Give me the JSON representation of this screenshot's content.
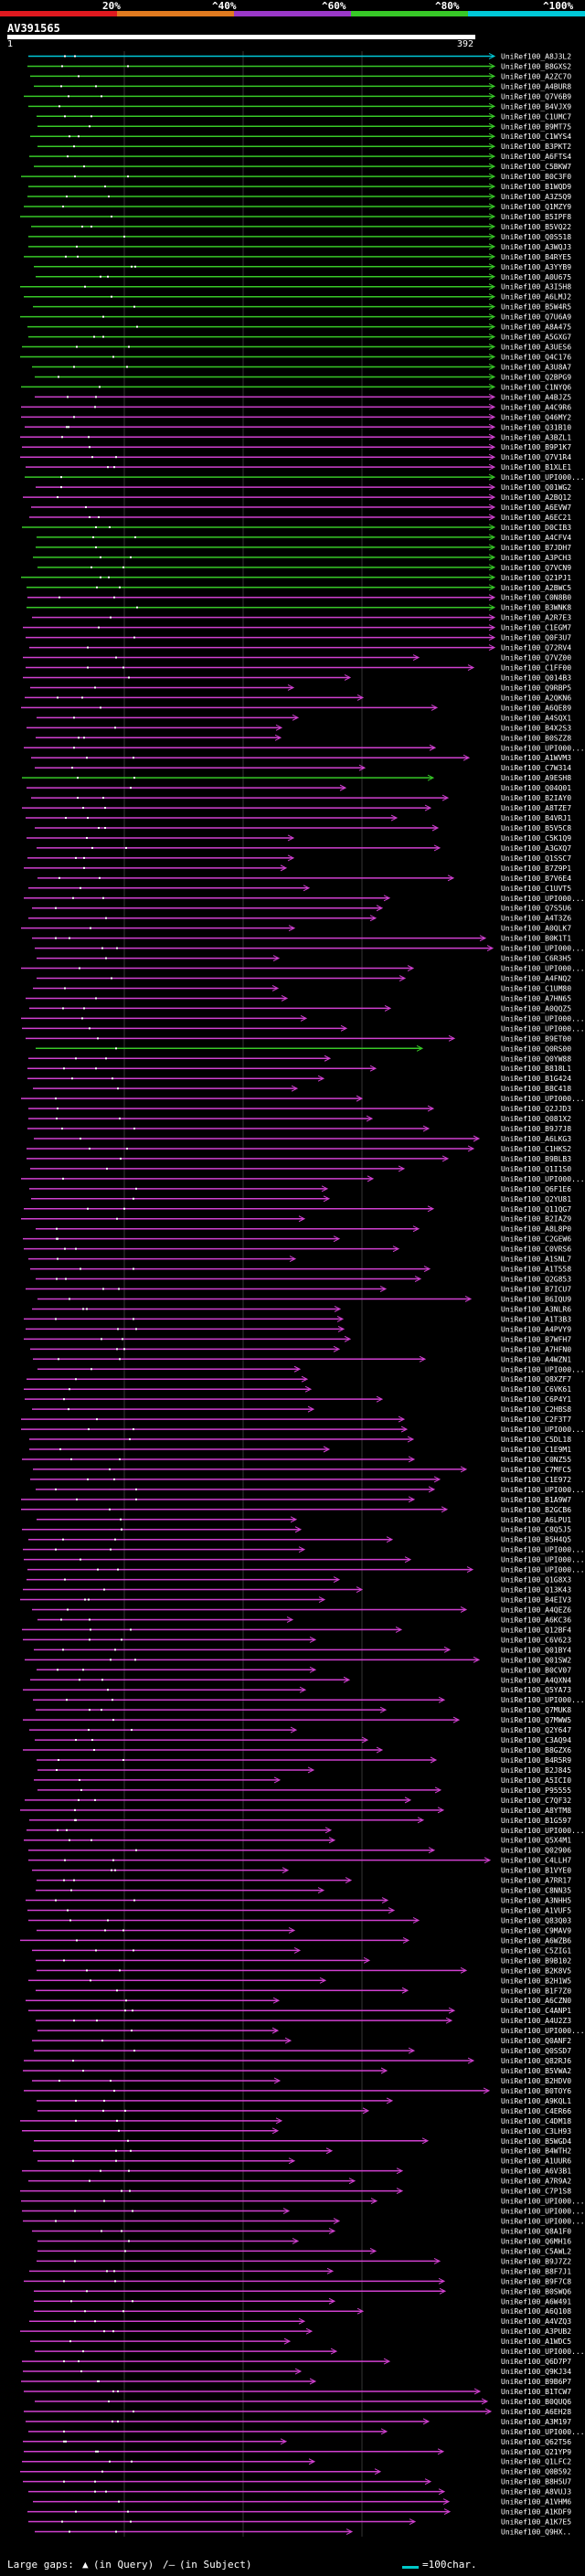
{
  "scale": {
    "labels": [
      "20%",
      "^40%",
      "^60%",
      "^80%",
      "^100%"
    ],
    "colors": [
      "#e0191f",
      "#e07a1f",
      "#9a38c8",
      "#37c827",
      "#00c8d8"
    ]
  },
  "query": {
    "title": "AV391565",
    "start": "1",
    "end": "392"
  },
  "footer": {
    "large_gaps_label": "Large gaps:",
    "in_query": "(in Query)",
    "in_subject": "(in Subject)",
    "legend_text": "=100char."
  },
  "hits": [
    {
      "id": "UniRef100_A8J3L2",
      "color": "cyan"
    },
    {
      "id": "UniRef100_B8GXS2",
      "color": "green"
    },
    {
      "id": "UniRef100_A2ZC7O",
      "color": "green"
    },
    {
      "id": "UniRef100_A4BUR8",
      "color": "green"
    },
    {
      "id": "UniRef100_Q7V6B9",
      "color": "green"
    },
    {
      "id": "UniRef100_B4VJX9",
      "color": "green"
    },
    {
      "id": "UniRef100_C1UMC7",
      "color": "green"
    },
    {
      "id": "UniRef100_B9MT75",
      "color": "green"
    },
    {
      "id": "UniRef100_C1WYS4",
      "color": "green"
    },
    {
      "id": "UniRef100_B3PKT2",
      "color": "green"
    },
    {
      "id": "UniRef100_A6FTS4",
      "color": "green"
    },
    {
      "id": "UniRef100_C5BKW7",
      "color": "green"
    },
    {
      "id": "UniRef100_B0C3F0",
      "color": "green"
    },
    {
      "id": "UniRef100_B1WQD9",
      "color": "green"
    },
    {
      "id": "UniRef100_A3Z5Q9",
      "color": "green"
    },
    {
      "id": "UniRef100_Q1MZY9",
      "color": "green"
    },
    {
      "id": "UniRef100_B5IPF8",
      "color": "green"
    },
    {
      "id": "UniRef100_B5VQ22",
      "color": "green"
    },
    {
      "id": "UniRef100_Q0S518",
      "color": "green"
    },
    {
      "id": "UniRef100_A3WQJ3",
      "color": "green"
    },
    {
      "id": "UniRef100_B4RYE5",
      "color": "green"
    },
    {
      "id": "UniRef100_A3YYB9",
      "color": "green"
    },
    {
      "id": "UniRef100_A0U675",
      "color": "green"
    },
    {
      "id": "UniRef100_A3I5H8",
      "color": "green"
    },
    {
      "id": "UniRef100_A6LMJ2",
      "color": "green"
    },
    {
      "id": "UniRef100_B5W4R5",
      "color": "green"
    },
    {
      "id": "UniRef100_Q7U6A9",
      "color": "green"
    },
    {
      "id": "UniRef100_A8A475",
      "color": "green"
    },
    {
      "id": "UniRef100_A5GXG7",
      "color": "green"
    },
    {
      "id": "UniRef100_A3UES6",
      "color": "green"
    },
    {
      "id": "UniRef100_Q4C176",
      "color": "green"
    },
    {
      "id": "UniRef100_A3U8A7",
      "color": "green"
    },
    {
      "id": "UniRef100_Q2BPG9",
      "color": "green"
    },
    {
      "id": "UniRef100_C1NYQ6",
      "color": "green"
    },
    {
      "id": "UniRef100_A4BJZ5",
      "color": "magenta"
    },
    {
      "id": "UniRef100_A4C9R6",
      "color": "magenta"
    },
    {
      "id": "UniRef100_Q46MY2",
      "color": "magenta"
    },
    {
      "id": "UniRef100_Q31B10",
      "color": "magenta"
    },
    {
      "id": "UniRef100_A3BZL1",
      "color": "magenta"
    },
    {
      "id": "UniRef100_B9P1K7",
      "color": "magenta"
    },
    {
      "id": "UniRef100_Q7V1R4",
      "color": "magenta"
    },
    {
      "id": "UniRef100_B1XLE1",
      "color": "magenta"
    },
    {
      "id": "UniRef100_UPI000...",
      "color": "green"
    },
    {
      "id": "UniRef100_Q01WG2",
      "color": "magenta"
    },
    {
      "id": "UniRef100_A2BQ12",
      "color": "magenta"
    },
    {
      "id": "UniRef100_A6EVW7",
      "color": "magenta"
    },
    {
      "id": "UniRef100_A6EC21",
      "color": "magenta"
    },
    {
      "id": "UniRef100_D0CIB3",
      "color": "green"
    },
    {
      "id": "UniRef100_A4CFV4",
      "color": "green"
    },
    {
      "id": "UniRef100_B7JDH7",
      "color": "green"
    },
    {
      "id": "UniRef100_A3PCH3",
      "color": "green"
    },
    {
      "id": "UniRef100_Q7VCN9",
      "color": "green"
    },
    {
      "id": "UniRef100_Q21PJ1",
      "color": "green"
    },
    {
      "id": "UniRef100_A2BWC5",
      "color": "green"
    },
    {
      "id": "UniRef100_C0N8B0",
      "color": "magenta"
    },
    {
      "id": "UniRef100_B3WNK8",
      "color": "green"
    },
    {
      "id": "UniRef100_A2R7E3",
      "color": "magenta"
    },
    {
      "id": "UniRef100_C1EGM7",
      "color": "magenta"
    },
    {
      "id": "UniRef100_Q0F3U7",
      "color": "magenta"
    },
    {
      "id": "UniRef100_Q72RV4",
      "color": "magenta"
    },
    {
      "id": "UniRef100_Q7VZ00",
      "color": "magenta"
    },
    {
      "id": "UniRef100_C1FF00",
      "color": "magenta"
    },
    {
      "id": "UniRef100_Q014B3",
      "color": "magenta"
    },
    {
      "id": "UniRef100_Q9RBP5",
      "color": "magenta"
    },
    {
      "id": "UniRef100_A2QKN6",
      "color": "magenta"
    },
    {
      "id": "UniRef100_A6QE89",
      "color": "magenta"
    },
    {
      "id": "UniRef100_A4SQX1",
      "color": "magenta"
    },
    {
      "id": "UniRef100_B4X2S3",
      "color": "magenta"
    },
    {
      "id": "UniRef100_B0SZZ8",
      "color": "magenta"
    },
    {
      "id": "UniRef100_UPI000...",
      "color": "magenta"
    },
    {
      "id": "UniRef100_A1WVM3",
      "color": "magenta"
    },
    {
      "id": "UniRef100_C7W314",
      "color": "magenta"
    },
    {
      "id": "UniRef100_A9ESH8",
      "color": "green"
    },
    {
      "id": "UniRef100_Q04Q01",
      "color": "magenta"
    },
    {
      "id": "UniRef100_B2IAY0",
      "color": "magenta"
    },
    {
      "id": "UniRef100_A8TZE7",
      "color": "magenta"
    },
    {
      "id": "UniRef100_B4VRJ1",
      "color": "magenta"
    },
    {
      "id": "UniRef100_B5V5C8",
      "color": "magenta"
    },
    {
      "id": "UniRef100_C5K1Q9",
      "color": "magenta"
    },
    {
      "id": "UniRef100_A3GXQ7",
      "color": "magenta"
    },
    {
      "id": "UniRef100_Q1SSC7",
      "color": "magenta"
    },
    {
      "id": "UniRef100_B7Z9P1",
      "color": "magenta"
    },
    {
      "id": "UniRef100_B7V6E4",
      "color": "magenta"
    },
    {
      "id": "UniRef100_C1UVT5",
      "color": "magenta"
    },
    {
      "id": "UniRef100_UPI000...",
      "color": "magenta"
    },
    {
      "id": "UniRef100_Q7S5U6",
      "color": "magenta"
    },
    {
      "id": "UniRef100_A4T3Z6",
      "color": "magenta"
    },
    {
      "id": "UniRef100_A0QLK7",
      "color": "magenta"
    },
    {
      "id": "UniRef100_B0K1T1",
      "color": "magenta"
    },
    {
      "id": "UniRef100_UPI000...",
      "color": "magenta"
    },
    {
      "id": "UniRef100_C6R3H5",
      "color": "magenta"
    },
    {
      "id": "UniRef100_UPI000...",
      "color": "magenta"
    },
    {
      "id": "UniRef100_A4FNQ2",
      "color": "magenta"
    },
    {
      "id": "UniRef100_C1UM80",
      "color": "magenta"
    },
    {
      "id": "UniRef100_A7HN65",
      "color": "magenta"
    },
    {
      "id": "UniRef100_A0QQZ5",
      "color": "magenta"
    },
    {
      "id": "UniRef100_UPI000...",
      "color": "magenta"
    },
    {
      "id": "UniRef100_UPI000...",
      "color": "magenta"
    },
    {
      "id": "UniRef100_B9ET00",
      "color": "magenta"
    },
    {
      "id": "UniRef100_Q0RS00",
      "color": "green"
    },
    {
      "id": "UniRef100_Q0YW88",
      "color": "magenta"
    },
    {
      "id": "UniRef100_B818L1",
      "color": "magenta"
    },
    {
      "id": "UniRef100_B1G424",
      "color": "magenta"
    },
    {
      "id": "UniRef100_B8C418",
      "color": "magenta"
    },
    {
      "id": "UniRef100_UPI000...",
      "color": "magenta"
    },
    {
      "id": "UniRef100_Q2JJD3",
      "color": "magenta"
    },
    {
      "id": "UniRef100_Q081X2",
      "color": "magenta"
    },
    {
      "id": "UniRef100_B9J7J8",
      "color": "magenta"
    },
    {
      "id": "UniRef100_A6LKG3",
      "color": "magenta"
    },
    {
      "id": "UniRef100_C1HKS2",
      "color": "magenta"
    },
    {
      "id": "UniRef100_B9BLB3",
      "color": "magenta"
    },
    {
      "id": "UniRef100_Q1I1S0",
      "color": "magenta"
    },
    {
      "id": "UniRef100_UPI000...",
      "color": "magenta"
    },
    {
      "id": "UniRef100_Q6F1E6",
      "color": "magenta"
    },
    {
      "id": "UniRef100_Q2YU81",
      "color": "magenta"
    },
    {
      "id": "UniRef100_Q11QG7",
      "color": "magenta"
    },
    {
      "id": "UniRef100_B2IAZ9",
      "color": "magenta"
    },
    {
      "id": "UniRef100_A8L8P0",
      "color": "magenta"
    },
    {
      "id": "UniRef100_C2GEW6",
      "color": "magenta"
    },
    {
      "id": "UniRef100_C0VRS6",
      "color": "magenta"
    },
    {
      "id": "UniRef100_A1SNL7",
      "color": "magenta"
    },
    {
      "id": "UniRef100_A1T558",
      "color": "magenta"
    },
    {
      "id": "UniRef100_Q2G853",
      "color": "magenta"
    },
    {
      "id": "UniRef100_B7ICU7",
      "color": "magenta"
    },
    {
      "id": "UniRef100_B6IQU9",
      "color": "magenta"
    },
    {
      "id": "UniRef100_A3NLR6",
      "color": "magenta"
    },
    {
      "id": "UniRef100_A1T3B3",
      "color": "magenta"
    },
    {
      "id": "UniRef100_A4PVY9",
      "color": "magenta"
    },
    {
      "id": "UniRef100_B7WFH7",
      "color": "magenta"
    },
    {
      "id": "UniRef100_A7HFN0",
      "color": "magenta"
    },
    {
      "id": "UniRef100_A4WZN1",
      "color": "magenta"
    },
    {
      "id": "UniRef100_UPI000...",
      "color": "magenta"
    },
    {
      "id": "UniRef100_Q8XZF7",
      "color": "magenta"
    },
    {
      "id": "UniRef100_C6VK61",
      "color": "magenta"
    },
    {
      "id": "UniRef100_C6P4Y1",
      "color": "magenta"
    },
    {
      "id": "UniRef100_C2HBS8",
      "color": "magenta"
    },
    {
      "id": "UniRef100_C2F3T7",
      "color": "magenta"
    },
    {
      "id": "UniRef100_UPI000...",
      "color": "magenta"
    },
    {
      "id": "UniRef100_C5DL18",
      "color": "magenta"
    },
    {
      "id": "UniRef100_C1E9M1",
      "color": "magenta"
    },
    {
      "id": "UniRef100_C0NZ55",
      "color": "magenta"
    },
    {
      "id": "UniRef100_C7MFC5",
      "color": "magenta"
    },
    {
      "id": "UniRef100_C1E972",
      "color": "magenta"
    },
    {
      "id": "UniRef100_UPI000...",
      "color": "magenta"
    },
    {
      "id": "UniRef100_B1A9W7",
      "color": "magenta"
    },
    {
      "id": "UniRef100_B2GCB6",
      "color": "magenta"
    },
    {
      "id": "UniRef100_A6LPU1",
      "color": "magenta"
    },
    {
      "id": "UniRef100_C8Q5J5",
      "color": "magenta"
    },
    {
      "id": "UniRef100_B5H4Q5",
      "color": "magenta"
    },
    {
      "id": "UniRef100_UPI000...",
      "color": "magenta"
    },
    {
      "id": "UniRef100_UPI000...",
      "color": "magenta"
    },
    {
      "id": "UniRef100_UPI000...",
      "color": "magenta"
    },
    {
      "id": "UniRef100_Q1G8X3",
      "color": "magenta"
    },
    {
      "id": "UniRef100_Q13K43",
      "color": "magenta"
    },
    {
      "id": "UniRef100_B4EIV3",
      "color": "magenta"
    },
    {
      "id": "UniRef100_A4QEZ6",
      "color": "magenta"
    },
    {
      "id": "UniRef100_A6KC36",
      "color": "magenta"
    },
    {
      "id": "UniRef100_Q12BF4",
      "color": "magenta"
    },
    {
      "id": "UniRef100_C6V623",
      "color": "magenta"
    },
    {
      "id": "UniRef100_Q01BY4",
      "color": "magenta"
    },
    {
      "id": "UniRef100_Q01SW2",
      "color": "magenta"
    },
    {
      "id": "UniRef100_B0CV07",
      "color": "magenta"
    },
    {
      "id": "UniRef100_A4QXN4",
      "color": "magenta"
    },
    {
      "id": "UniRef100_Q5YA73",
      "color": "magenta"
    },
    {
      "id": "UniRef100_UPI000...",
      "color": "magenta"
    },
    {
      "id": "UniRef100_Q7MUK8",
      "color": "magenta"
    },
    {
      "id": "UniRef100_Q7MWW5",
      "color": "magenta"
    },
    {
      "id": "UniRef100_Q2Y647",
      "color": "magenta"
    },
    {
      "id": "UniRef100_C3AQ94",
      "color": "magenta"
    },
    {
      "id": "UniRef100_B8GZX6",
      "color": "magenta"
    },
    {
      "id": "UniRef100_B4R5R9",
      "color": "magenta"
    },
    {
      "id": "UniRef100_B2J845",
      "color": "magenta"
    },
    {
      "id": "UniRef100_A5ICI0",
      "color": "magenta"
    },
    {
      "id": "UniRef100_P95555",
      "color": "magenta"
    },
    {
      "id": "UniRef100_C7QF32",
      "color": "magenta"
    },
    {
      "id": "UniRef100_A8YTM8",
      "color": "magenta"
    },
    {
      "id": "UniRef100_B1G597",
      "color": "magenta"
    },
    {
      "id": "UniRef100_UPI000...",
      "color": "magenta"
    },
    {
      "id": "UniRef100_Q5X4M1",
      "color": "magenta"
    },
    {
      "id": "UniRef100_Q02906",
      "color": "magenta"
    },
    {
      "id": "UniRef100_C4LLH7",
      "color": "magenta"
    },
    {
      "id": "UniRef100_B1VYE0",
      "color": "magenta"
    },
    {
      "id": "UniRef100_A7RR17",
      "color": "magenta"
    },
    {
      "id": "UniRef100_C8NN35",
      "color": "magenta"
    },
    {
      "id": "UniRef100_A3NHH5",
      "color": "magenta"
    },
    {
      "id": "UniRef100_A1VUF5",
      "color": "magenta"
    },
    {
      "id": "UniRef100_Q83Q03",
      "color": "magenta"
    },
    {
      "id": "UniRef100_C9MAV9",
      "color": "magenta"
    },
    {
      "id": "UniRef100_A6WZB6",
      "color": "magenta"
    },
    {
      "id": "UniRef100_C5ZIG1",
      "color": "magenta"
    },
    {
      "id": "UniRef100_B9B102",
      "color": "magenta"
    },
    {
      "id": "UniRef100_B2K8V5",
      "color": "magenta"
    },
    {
      "id": "UniRef100_B2H1W5",
      "color": "magenta"
    },
    {
      "id": "UniRef100_B1F7Z0",
      "color": "magenta"
    },
    {
      "id": "UniRef100_A6CZN0",
      "color": "magenta"
    },
    {
      "id": "UniRef100_C4ANP1",
      "color": "magenta"
    },
    {
      "id": "UniRef100_A4U2Z3",
      "color": "magenta"
    },
    {
      "id": "UniRef100_UPI000...",
      "color": "magenta"
    },
    {
      "id": "UniRef100_Q0ANF2",
      "color": "magenta"
    },
    {
      "id": "UniRef100_Q0SSD7",
      "color": "magenta"
    },
    {
      "id": "UniRef100_Q82RJ6",
      "color": "magenta"
    },
    {
      "id": "UniRef100_B5VWA2",
      "color": "magenta"
    },
    {
      "id": "UniRef100_B2HDV0",
      "color": "magenta"
    },
    {
      "id": "UniRef100_B0TOY6",
      "color": "magenta"
    },
    {
      "id": "UniRef100_A9KQL1",
      "color": "magenta"
    },
    {
      "id": "UniRef100_C4ER66",
      "color": "magenta"
    },
    {
      "id": "UniRef100_C4DM18",
      "color": "magenta"
    },
    {
      "id": "UniRef100_C3LH93",
      "color": "magenta"
    },
    {
      "id": "UniRef100_B5WGD4",
      "color": "magenta"
    },
    {
      "id": "UniRef100_B4WTH2",
      "color": "magenta"
    },
    {
      "id": "UniRef100_A1UUR6",
      "color": "magenta"
    },
    {
      "id": "UniRef100_A6V3B1",
      "color": "magenta"
    },
    {
      "id": "UniRef100_A7R9A2",
      "color": "magenta"
    },
    {
      "id": "UniRef100_C7P1S8",
      "color": "magenta"
    },
    {
      "id": "UniRef100_UPI000...",
      "color": "magenta"
    },
    {
      "id": "UniRef100_UPI000...",
      "color": "magenta"
    },
    {
      "id": "UniRef100_UPI000...",
      "color": "magenta"
    },
    {
      "id": "UniRef100_Q8A1F0",
      "color": "magenta"
    },
    {
      "id": "UniRef100_Q6MH16",
      "color": "magenta"
    },
    {
      "id": "UniRef100_C5AWL2",
      "color": "magenta"
    },
    {
      "id": "UniRef100_B9J7Z2",
      "color": "magenta"
    },
    {
      "id": "UniRef100_B8F7J1",
      "color": "magenta"
    },
    {
      "id": "UniRef100_B9F7C8",
      "color": "magenta"
    },
    {
      "id": "UniRef100_B0SWQ6",
      "color": "magenta"
    },
    {
      "id": "UniRef100_A6W491",
      "color": "magenta"
    },
    {
      "id": "UniRef100_A6Q108",
      "color": "magenta"
    },
    {
      "id": "UniRef100_A4VZQ3",
      "color": "magenta"
    },
    {
      "id": "UniRef100_A3PUB2",
      "color": "magenta"
    },
    {
      "id": "UniRef100_A1WDC5",
      "color": "magenta"
    },
    {
      "id": "UniRef100_UPI000...",
      "color": "magenta"
    },
    {
      "id": "UniRef100_Q6D7P7",
      "color": "magenta"
    },
    {
      "id": "UniRef100_Q9KJ34",
      "color": "magenta"
    },
    {
      "id": "UniRef100_B9B6P7",
      "color": "magenta"
    },
    {
      "id": "UniRef100_B1TCW7",
      "color": "magenta"
    },
    {
      "id": "UniRef100_B0QUQ6",
      "color": "magenta"
    },
    {
      "id": "UniRef100_A6EH28",
      "color": "magenta"
    },
    {
      "id": "UniRef100_A3M197",
      "color": "magenta"
    },
    {
      "id": "UniRef100_UPI000...",
      "color": "magenta"
    },
    {
      "id": "UniRef100_Q62T56",
      "color": "magenta"
    },
    {
      "id": "UniRef100_Q21YP9",
      "color": "magenta"
    },
    {
      "id": "UniRef100_Q1LFC2",
      "color": "magenta"
    },
    {
      "id": "UniRef100_Q0B592",
      "color": "magenta"
    },
    {
      "id": "UniRef100_B8H5U7",
      "color": "magenta"
    },
    {
      "id": "UniRef100_A8VUJ3",
      "color": "magenta"
    },
    {
      "id": "UniRef100_A1VHM6",
      "color": "magenta"
    },
    {
      "id": "UniRef100_A1KDF9",
      "color": "magenta"
    },
    {
      "id": "UniRef100_A1K7E5",
      "color": "magenta"
    },
    {
      "id": "UniRef100_Q9HX..",
      "color": "magenta"
    }
  ]
}
